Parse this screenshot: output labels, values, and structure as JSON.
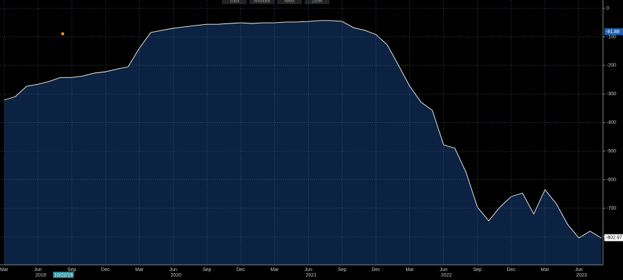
{
  "toolbar": [
    "Track",
    "Annotate",
    "News",
    "Zoom"
  ],
  "date_box": "10/22/19",
  "chart_data": {
    "type": "area",
    "color": "#0b2242",
    "line_color": "#ffffff",
    "x": [
      "2019-03",
      "2019-04",
      "2019-05",
      "2019-06",
      "2019-07",
      "2019-08",
      "2019-09",
      "2019-10",
      "2019-11",
      "2019-12",
      "2020-01",
      "2020-02",
      "2020-03",
      "2020-04",
      "2020-05",
      "2020-06",
      "2020-07",
      "2020-08",
      "2020-09",
      "2020-10",
      "2020-11",
      "2020-12",
      "2021-01",
      "2021-02",
      "2021-03",
      "2021-04",
      "2021-05",
      "2021-06",
      "2021-07",
      "2021-08",
      "2021-09",
      "2021-10",
      "2021-11",
      "2021-12",
      "2022-01",
      "2022-02",
      "2022-03",
      "2022-04",
      "2022-05",
      "2022-06",
      "2022-07",
      "2022-08",
      "2022-09",
      "2022-10",
      "2022-11",
      "2022-12",
      "2023-01",
      "2023-02",
      "2023-03",
      "2023-04",
      "2023-05",
      "2023-06",
      "2023-07",
      "2023-08"
    ],
    "values": [
      -321,
      -309,
      -273,
      -266,
      -256,
      -242,
      -242,
      -237,
      -227,
      -222,
      -213,
      -205,
      -140,
      -85,
      -77,
      -70,
      -65,
      -60,
      -56,
      -56,
      -53,
      -51,
      -53,
      -51,
      -51,
      -48,
      -48,
      -46,
      -43,
      -43,
      -46,
      -68,
      -77,
      -92,
      -128,
      -200,
      -273,
      -329,
      -357,
      -478,
      -490,
      -575,
      -696,
      -744,
      -696,
      -659,
      -647,
      -720,
      -635,
      -684,
      -756,
      -804,
      -780,
      -804
    ],
    "ylim": [
      -898,
      29
    ],
    "yticks": [
      0,
      -100,
      -200,
      -300,
      -400,
      -500,
      -600,
      -700,
      -800
    ],
    "grid": true,
    "xticks": [
      {
        "value": "2019-03",
        "label": "Mar"
      },
      {
        "value": "2019-06",
        "label": "Jun"
      },
      {
        "value": "2019-09",
        "label": "Sep"
      },
      {
        "value": "2019-12",
        "label": "Dec"
      },
      {
        "value": "2020-03",
        "label": "Mar"
      },
      {
        "value": "2020-06",
        "label": "Jun"
      },
      {
        "value": "2020-09",
        "label": "Sep"
      },
      {
        "value": "2020-12",
        "label": "Dec"
      },
      {
        "value": "2021-03",
        "label": "Mar"
      },
      {
        "value": "2021-06",
        "label": "Jun"
      },
      {
        "value": "2021-09",
        "label": "Sep"
      },
      {
        "value": "2021-12",
        "label": "Dec"
      },
      {
        "value": "2022-03",
        "label": "Mar"
      },
      {
        "value": "2022-06",
        "label": "Jun"
      },
      {
        "value": "2022-09",
        "label": "Sep"
      },
      {
        "value": "2022-12",
        "label": "Dec"
      },
      {
        "value": "2023-03",
        "label": "Mar"
      },
      {
        "value": "2023-06",
        "label": "Jun"
      }
    ],
    "year_ticks": [
      {
        "value": "2019-06",
        "label": "2019"
      },
      {
        "value": "2020-06",
        "label": "2020"
      },
      {
        "value": "2021-06",
        "label": "2021"
      },
      {
        "value": "2022-06",
        "label": "2022"
      },
      {
        "value": "2023-06",
        "label": "2023"
      }
    ],
    "tags": [
      {
        "value": -802.97,
        "color": "#ffffff",
        "text_color": "#000000"
      },
      {
        "value": -81.88,
        "color": "#1f5fb0",
        "text_color": "#ffffff"
      }
    ]
  }
}
